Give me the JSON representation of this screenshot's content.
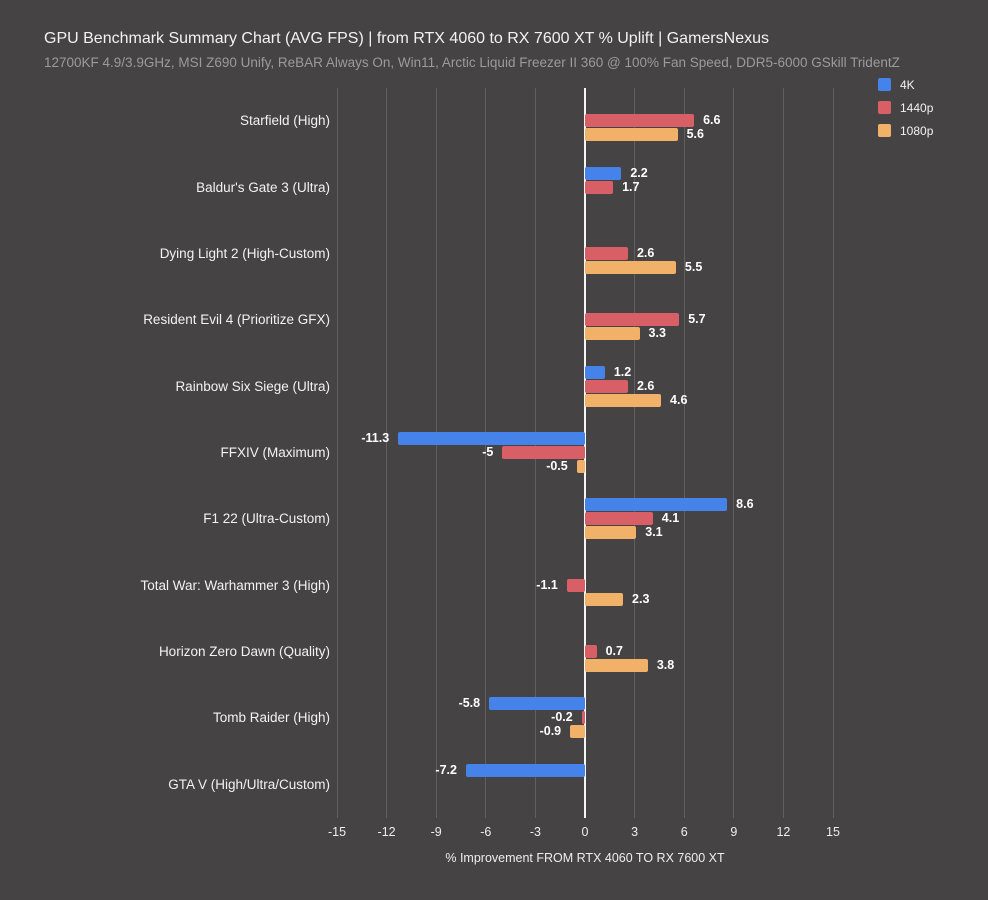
{
  "theme": {
    "background": "#464344",
    "gridline": "#605e60",
    "zero_line": "#f5f5f5",
    "title_text": "#f2f2f2",
    "subtitle_text": "#9c9a9b",
    "value_label_text": "#ffffff"
  },
  "chart_data": {
    "type": "bar",
    "orientation": "horizontal",
    "title": "GPU Benchmark Summary Chart (AVG FPS) | from RTX 4060 to RX 7600 XT % Uplift | GamersNexus",
    "subtitle": "12700KF 4.9/3.9GHz, MSI Z690 Unify, ReBAR Always On, Win11, Arctic Liquid Freezer II 360 @ 100% Fan Speed, DDR5-6000 GSkill TridentZ",
    "xlabel": "% Improvement FROM RTX 4060 TO RX 7600 XT",
    "xlim": [
      -15,
      15
    ],
    "xticks": [
      -15,
      -12,
      -9,
      -6,
      -3,
      0,
      3,
      6,
      9,
      12,
      15
    ],
    "grid": true,
    "legend_position": "top-right",
    "categories": [
      "Starfield (High)",
      "Baldur's Gate 3 (Ultra)",
      "Dying Light 2 (High-Custom)",
      "Resident Evil 4 (Prioritize GFX)",
      "Rainbow Six Siege (Ultra)",
      "FFXIV (Maximum)",
      "F1 22 (Ultra-Custom)",
      "Total War: Warhammer 3 (High)",
      "Horizon Zero Dawn (Quality)",
      "Tomb Raider (High)",
      "GTA V (High/Ultra/Custom)"
    ],
    "series": [
      {
        "name": "4K",
        "color": "#4583ea",
        "values": [
          null,
          2.2,
          null,
          null,
          1.2,
          -11.3,
          8.6,
          null,
          null,
          -5.8,
          -7.2
        ]
      },
      {
        "name": "1440p",
        "color": "#d95f66",
        "values": [
          6.6,
          1.7,
          2.6,
          5.7,
          2.6,
          -5,
          4.1,
          -1.1,
          0.7,
          -0.2,
          null
        ]
      },
      {
        "name": "1080p",
        "color": "#f1b169",
        "values": [
          5.6,
          null,
          5.5,
          3.3,
          4.6,
          -0.5,
          3.1,
          2.3,
          3.8,
          -0.9,
          null
        ]
      }
    ]
  }
}
